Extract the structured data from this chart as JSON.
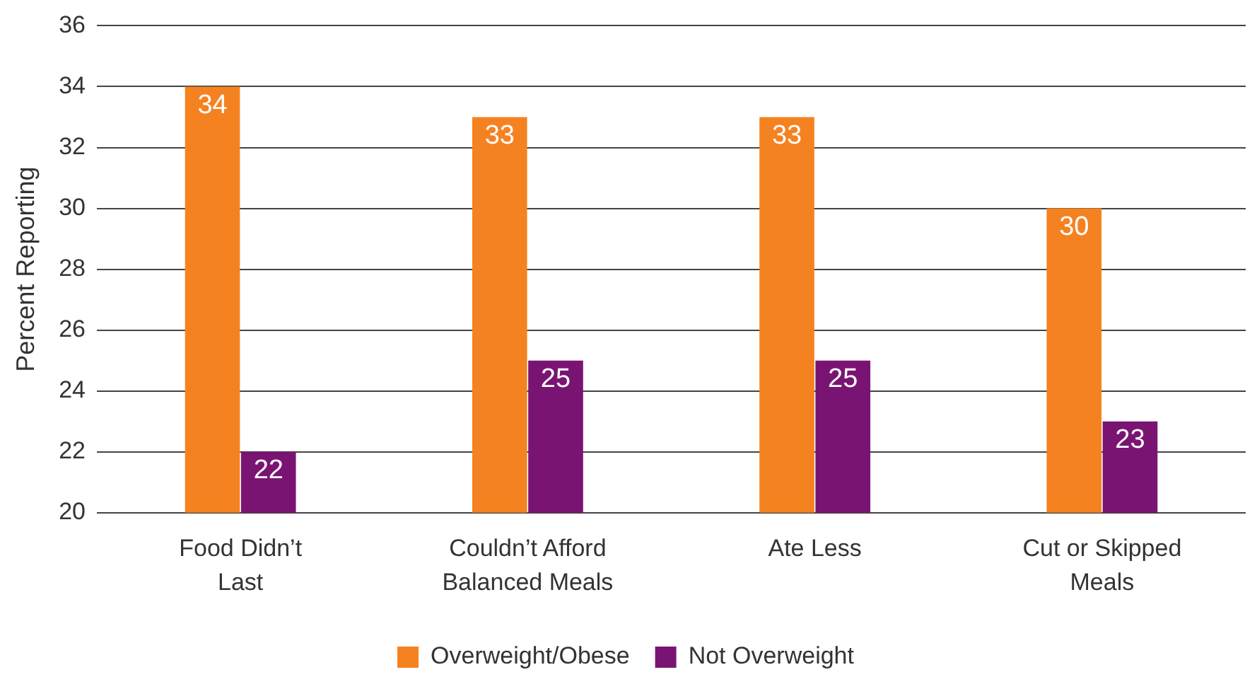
{
  "chart_data": {
    "type": "bar",
    "ylabel": "Percent Reporting",
    "categories": [
      "Food Didn’t Last",
      "Couldn’t Afford Balanced Meals",
      "Ate Less",
      "Cut or Skipped Meals"
    ],
    "series": [
      {
        "name": "Overweight/Obese",
        "color": "#f58220",
        "values": [
          34,
          33,
          33,
          30
        ]
      },
      {
        "name": "Not Overweight",
        "color": "#7a1473",
        "values": [
          22,
          25,
          25,
          23
        ]
      }
    ],
    "ylim": [
      20,
      36
    ],
    "yticks": [
      20,
      22,
      24,
      26,
      28,
      30,
      32,
      34,
      36
    ],
    "grid": "y",
    "legend": "bottom",
    "data_labels": true
  }
}
